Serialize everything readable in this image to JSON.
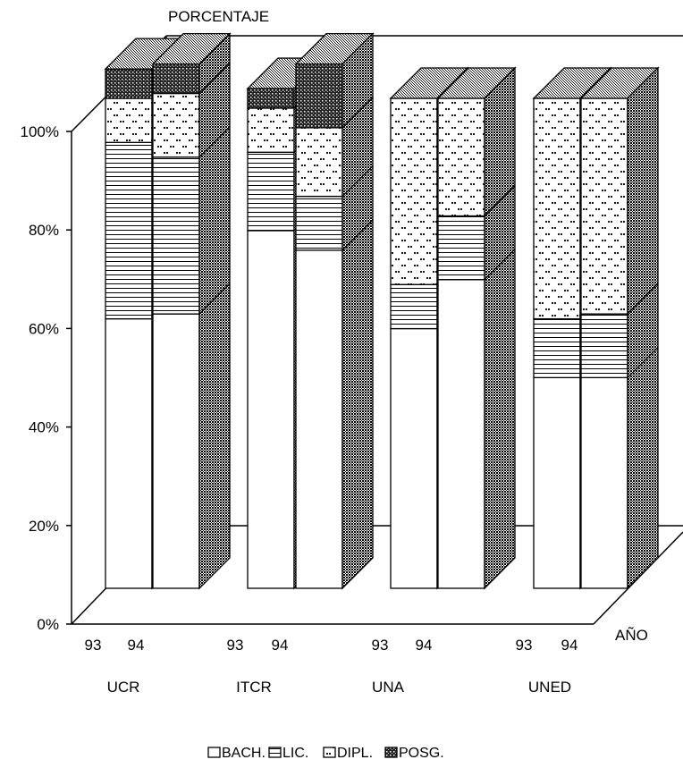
{
  "chart_data": {
    "type": "bar",
    "stacked": true,
    "three_d": true,
    "title": "",
    "ylabel": "PORCENTAJE",
    "xlabel": "AÑO",
    "ylim": [
      0,
      100
    ],
    "y_ticks": [
      "0%",
      "20%",
      "40%",
      "60%",
      "80%",
      "100%"
    ],
    "groups": [
      "UCR",
      "ITCR",
      "UNA",
      "UNED"
    ],
    "years": [
      "93",
      "94"
    ],
    "categories": [
      "UCR 93",
      "UCR 94",
      "ITCR 93",
      "ITCR 94",
      "UNA 93",
      "UNA 94",
      "UNED 93",
      "UNED 94"
    ],
    "series": [
      {
        "name": "BACH.",
        "pattern": "blank",
        "values": [
          55,
          56,
          73,
          69,
          53,
          63,
          43,
          43
        ]
      },
      {
        "name": "LIC.",
        "pattern": "horizontal-lines",
        "values": [
          36,
          32,
          16,
          11,
          9,
          13,
          12,
          13
        ]
      },
      {
        "name": "DIPL.",
        "pattern": "dots",
        "values": [
          9,
          13,
          9,
          14,
          38,
          24,
          45,
          44
        ]
      },
      {
        "name": "POSG.",
        "pattern": "dense-dark",
        "values": [
          6,
          6,
          4,
          13,
          0,
          0,
          0,
          0
        ]
      }
    ],
    "legend": {
      "position": "bottom",
      "labels": [
        "BACH.",
        "LIC.",
        "DIPL.",
        "POSG."
      ]
    },
    "grid": false
  }
}
